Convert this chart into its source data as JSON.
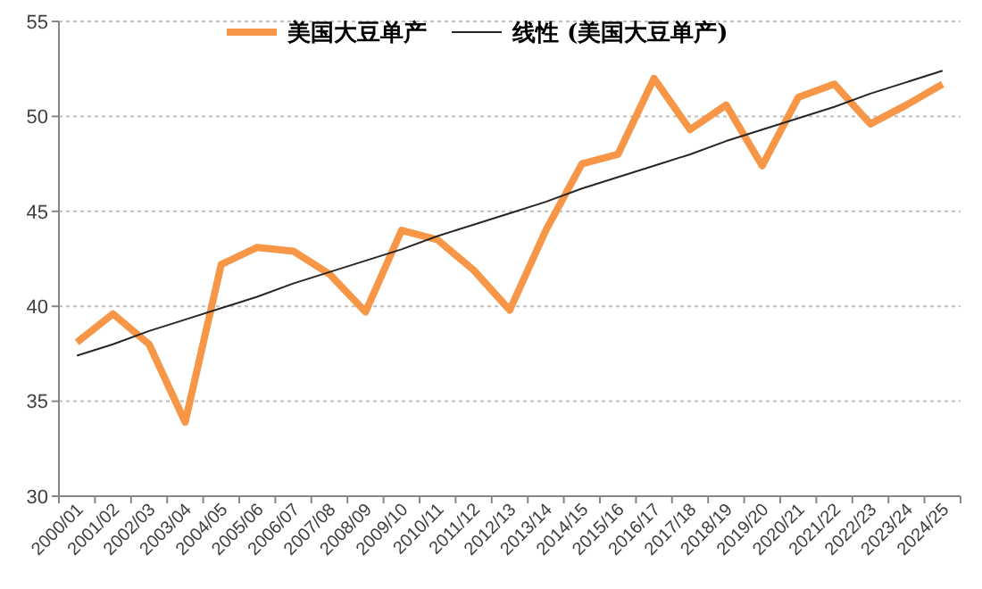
{
  "chart_data": {
    "type": "line",
    "categories": [
      "2000/01",
      "2001/02",
      "2002/03",
      "2003/04",
      "2004/05",
      "2005/06",
      "2006/07",
      "2007/08",
      "2008/09",
      "2009/10",
      "2010/11",
      "2011/12",
      "2012/13",
      "2013/14",
      "2014/15",
      "2015/16",
      "2016/17",
      "2017/18",
      "2018/19",
      "2019/20",
      "2020/21",
      "2021/22",
      "2022/23",
      "2023/24",
      "2024/25"
    ],
    "series": [
      {
        "name": "美国大豆单产",
        "color": "#f79646",
        "values": [
          38.1,
          39.6,
          38.0,
          33.9,
          42.2,
          43.1,
          42.9,
          41.7,
          39.7,
          44.0,
          43.5,
          41.9,
          39.8,
          44.0,
          47.5,
          48.0,
          52.0,
          49.3,
          50.6,
          47.4,
          51.0,
          51.7,
          49.6,
          50.6,
          51.7
        ]
      },
      {
        "name": "线性 (美国大豆单产)",
        "type": "line",
        "color": "#262626",
        "values": [
          37.4,
          38.0,
          38.7,
          39.3,
          39.9,
          40.5,
          41.2,
          41.8,
          42.4,
          43.0,
          43.7,
          44.3,
          44.9,
          45.5,
          46.2,
          46.8,
          47.4,
          48.0,
          48.7,
          49.3,
          49.9,
          50.5,
          51.2,
          51.8,
          52.4
        ]
      }
    ],
    "ylim": [
      30,
      55
    ],
    "yticks": [
      30,
      35,
      40,
      45,
      50,
      55
    ],
    "grid": "y",
    "legend": "top",
    "marker": "none"
  }
}
